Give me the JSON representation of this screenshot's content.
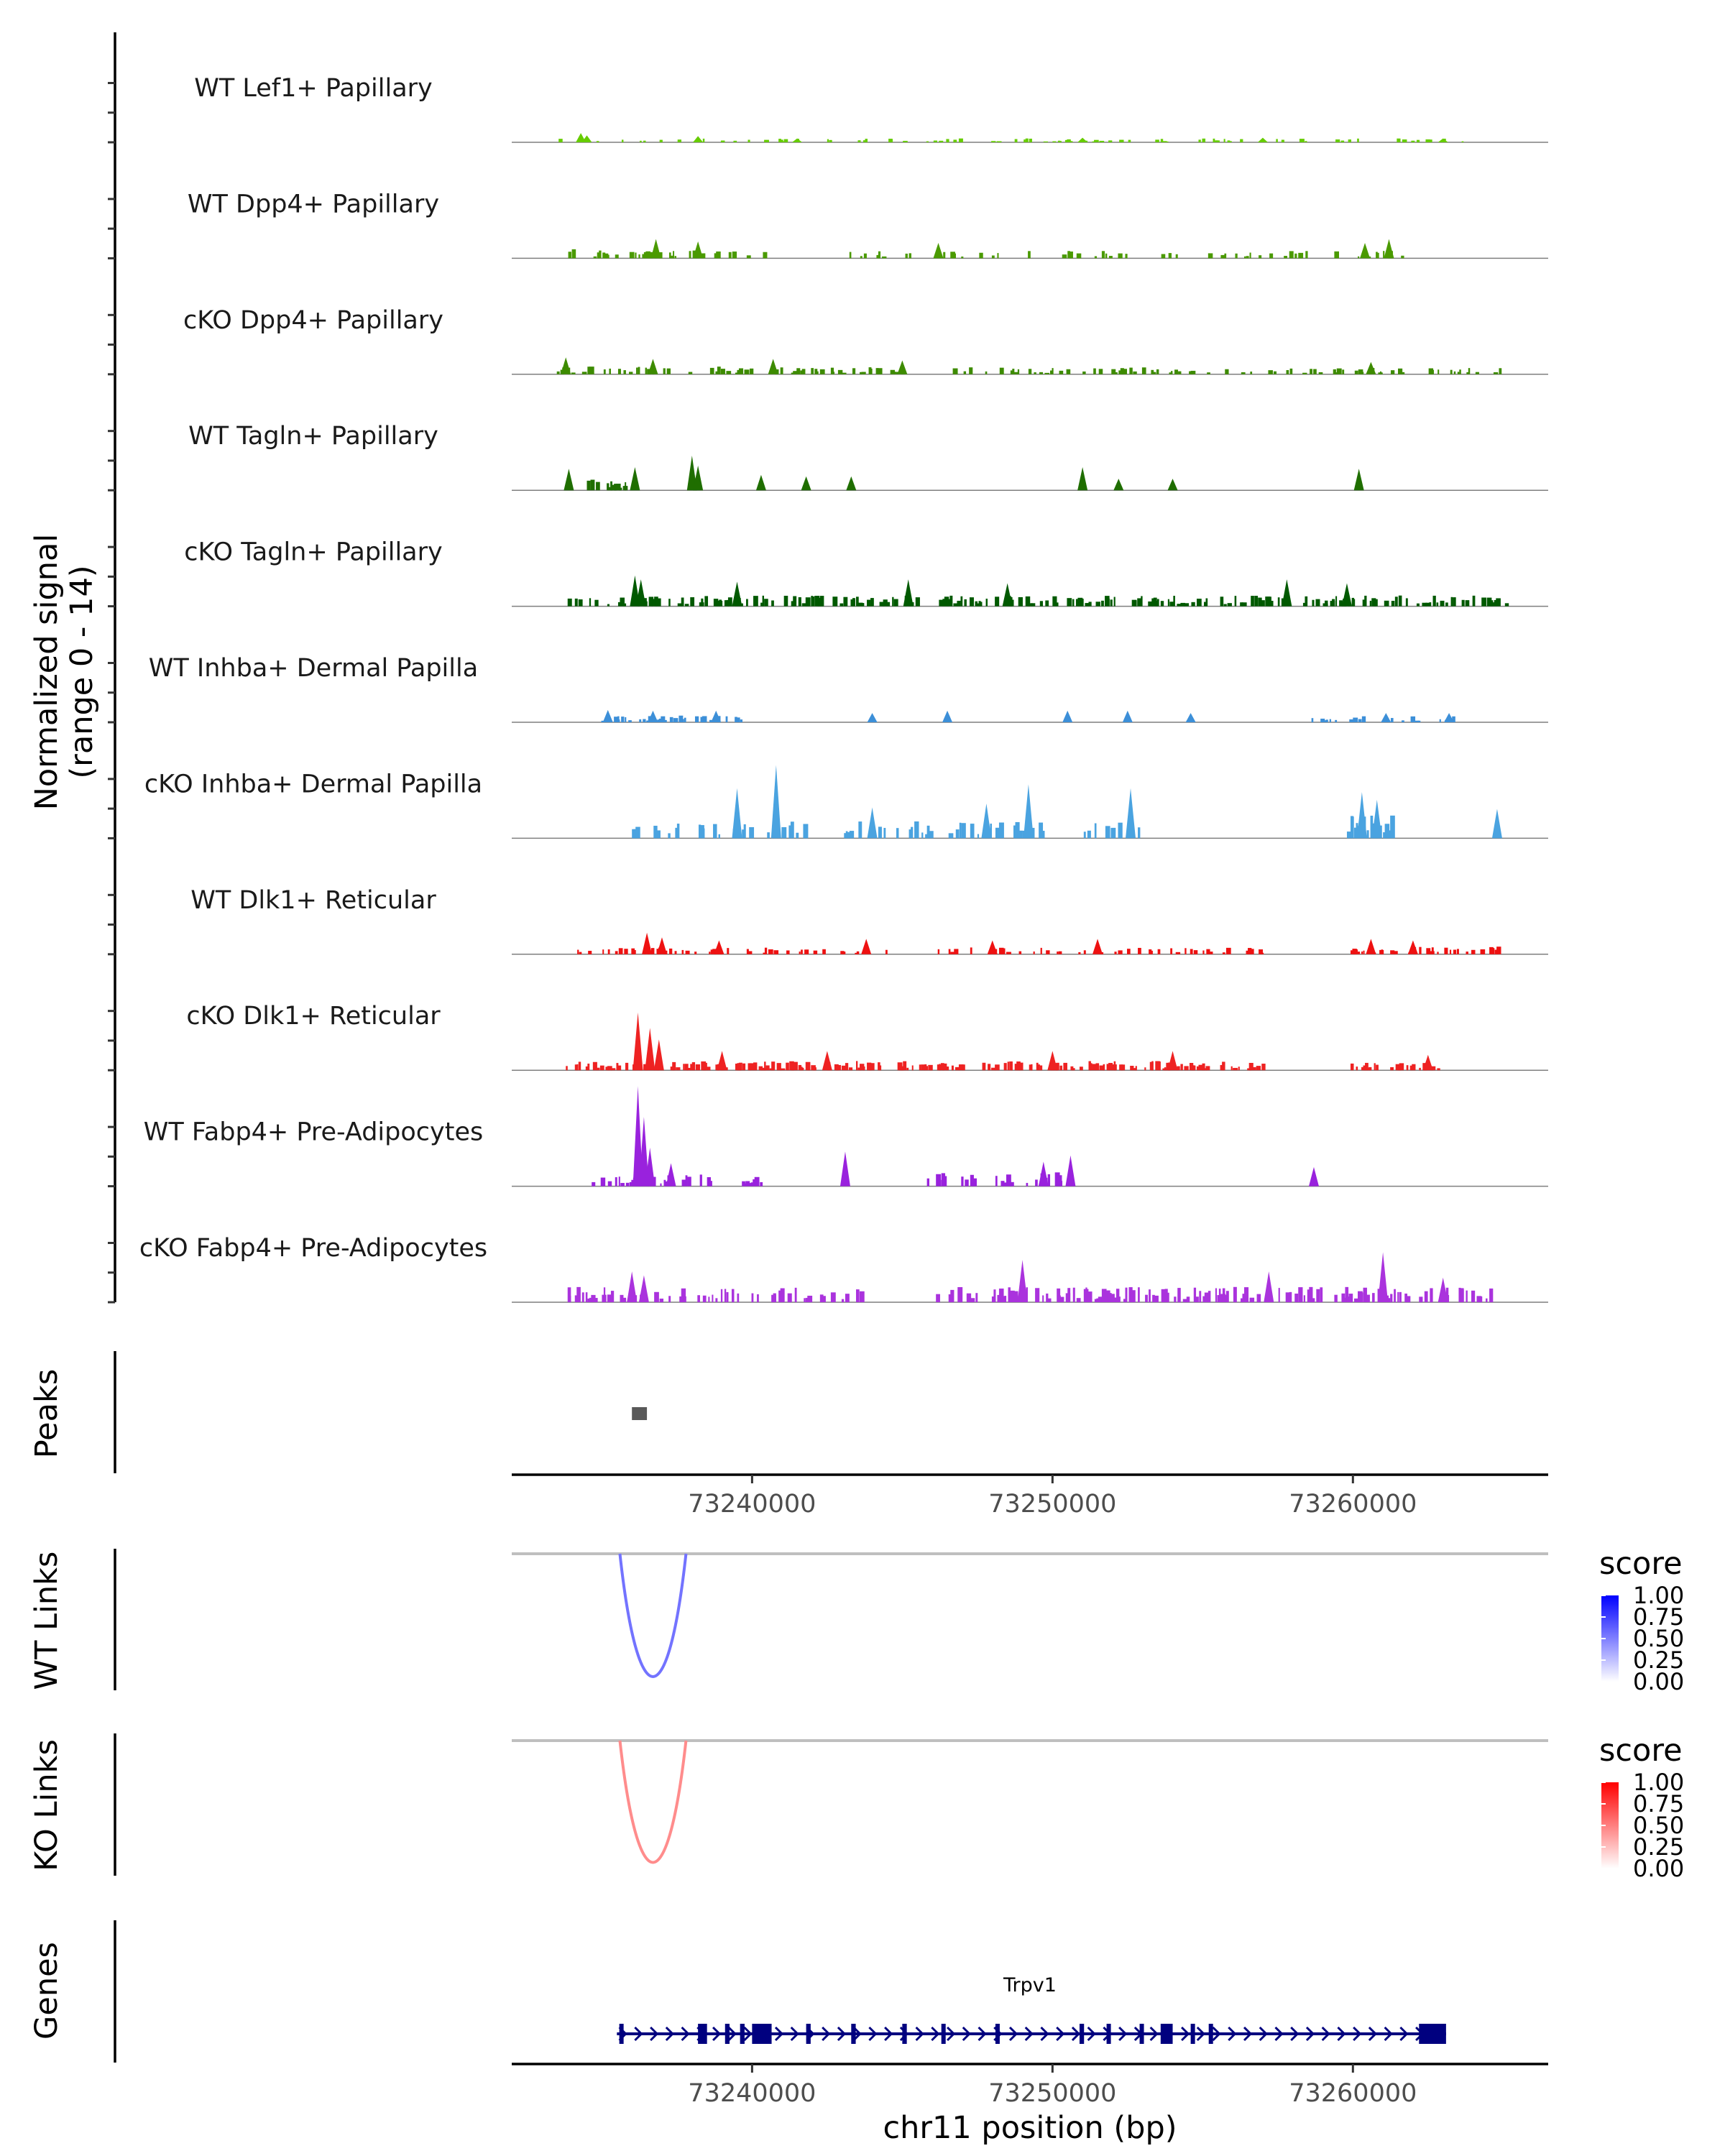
{
  "chart_data": {
    "type": "genome-track",
    "chromosome": "chr11",
    "x_range": [
      73232000,
      73266500
    ],
    "xlabel": "chr11 position (bp)",
    "x_ticks": [
      73240000,
      73250000,
      73260000
    ],
    "x_tick_labels": [
      "73240000",
      "73250000",
      "73260000"
    ],
    "signal_axis_title": [
      "Normalized signal",
      "(range 0 - 14)"
    ],
    "signal_range": [
      0,
      14
    ],
    "coverage_tracks": [
      {
        "name": "WT Lef1+ Papillary",
        "color": "#66cc00",
        "peaks": [
          [
            73234300,
            1.2
          ],
          [
            73234500,
            0.9
          ],
          [
            73238200,
            0.8
          ],
          [
            73241500,
            0.5
          ],
          [
            73251000,
            0.6
          ],
          [
            73257000,
            0.6
          ],
          [
            73263000,
            0.5
          ]
        ],
        "noise": [
          [
            73233200,
            73264000,
            0.5,
            0.18
          ]
        ]
      },
      {
        "name": "WT Dpp4+ Papillary",
        "color": "#4a9a00",
        "peaks": [
          [
            73236800,
            2.5
          ],
          [
            73238200,
            2.2
          ],
          [
            73246200,
            2.0
          ],
          [
            73260400,
            2.0
          ],
          [
            73261200,
            2.5
          ]
        ],
        "noise": [
          [
            73233700,
            73240500,
            1.2,
            0.22
          ],
          [
            73243000,
            73261700,
            1.0,
            0.14
          ]
        ]
      },
      {
        "name": "cKO Dpp4+ Papillary",
        "color": "#3d8b00",
        "peaks": [
          [
            73233800,
            2.2
          ],
          [
            73236700,
            2.0
          ],
          [
            73240700,
            2.0
          ],
          [
            73245000,
            1.8
          ],
          [
            73260600,
            1.6
          ]
        ],
        "noise": [
          [
            73233500,
            73245000,
            1.0,
            0.3
          ],
          [
            73246500,
            73265000,
            0.9,
            0.26
          ]
        ]
      },
      {
        "name": "WT Tagln+ Papillary",
        "color": "#1f6e00",
        "peaks": [
          [
            73233900,
            2.8
          ],
          [
            73236100,
            3.0
          ],
          [
            73238000,
            4.5
          ],
          [
            73238200,
            3.2
          ],
          [
            73240300,
            2.0
          ],
          [
            73241800,
            1.8
          ],
          [
            73243300,
            1.8
          ],
          [
            73251000,
            3.0
          ],
          [
            73252200,
            1.5
          ],
          [
            73254000,
            1.5
          ],
          [
            73260200,
            2.8
          ]
        ],
        "noise": [
          [
            73234500,
            73235800,
            1.4,
            0.5
          ]
        ]
      },
      {
        "name": "cKO Tagln+ Papillary",
        "color": "#005900",
        "peaks": [
          [
            73236100,
            4.0
          ],
          [
            73236300,
            3.5
          ],
          [
            73239500,
            3.2
          ],
          [
            73245200,
            3.5
          ],
          [
            73248500,
            3.0
          ],
          [
            73257800,
            3.5
          ],
          [
            73259800,
            3.0
          ]
        ],
        "noise": [
          [
            73233800,
            73245500,
            1.4,
            0.42
          ],
          [
            73245800,
            73265200,
            1.4,
            0.42
          ]
        ]
      },
      {
        "name": "WT Inhba+ Dermal Papilla",
        "color": "#3c8fd8",
        "peaks": [
          [
            73235200,
            1.6
          ],
          [
            73236700,
            1.5
          ],
          [
            73238800,
            1.5
          ],
          [
            73244000,
            1.2
          ],
          [
            73246500,
            1.5
          ],
          [
            73250500,
            1.5
          ],
          [
            73252500,
            1.5
          ],
          [
            73254600,
            1.2
          ],
          [
            73261100,
            1.2
          ],
          [
            73263200,
            1.2
          ]
        ],
        "noise": [
          [
            73234800,
            73239800,
            0.9,
            0.28
          ],
          [
            73258500,
            73263500,
            0.8,
            0.22
          ]
        ]
      },
      {
        "name": "cKO Inhba+ Dermal Papilla",
        "color": "#4aa3e0",
        "peaks": [
          [
            73240800,
            9.5
          ],
          [
            73239500,
            6.5
          ],
          [
            73244000,
            4.0
          ],
          [
            73247800,
            4.5
          ],
          [
            73249200,
            7.0
          ],
          [
            73252600,
            6.5
          ],
          [
            73260300,
            6.0
          ],
          [
            73260800,
            5.0
          ],
          [
            73264800,
            3.8
          ]
        ],
        "noise": [
          [
            73236000,
            73242000,
            2.2,
            0.22
          ],
          [
            73243000,
            73253000,
            2.2,
            0.26
          ],
          [
            73259800,
            73261300,
            3.0,
            0.7
          ]
        ]
      },
      {
        "name": "WT Dlk1+ Reticular",
        "color": "#ee1111",
        "peaks": [
          [
            73236500,
            2.8
          ],
          [
            73237000,
            2.2
          ],
          [
            73238900,
            1.8
          ],
          [
            73243800,
            2.0
          ],
          [
            73248000,
            1.8
          ],
          [
            73251500,
            2.0
          ],
          [
            73260600,
            2.0
          ],
          [
            73262000,
            1.8
          ]
        ],
        "noise": [
          [
            73234000,
            73244500,
            0.9,
            0.28
          ],
          [
            73246000,
            73257500,
            0.9,
            0.18
          ],
          [
            73259800,
            73264800,
            1.0,
            0.32
          ]
        ]
      },
      {
        "name": "cKO Dlk1+ Reticular",
        "color": "#ee2222",
        "peaks": [
          [
            73236200,
            7.5
          ],
          [
            73236600,
            5.5
          ],
          [
            73236900,
            4.0
          ],
          [
            73239000,
            2.5
          ],
          [
            73242500,
            2.5
          ],
          [
            73250000,
            2.5
          ],
          [
            73254000,
            2.5
          ],
          [
            73262500,
            2.0
          ]
        ],
        "noise": [
          [
            73233800,
            73257000,
            1.2,
            0.42
          ],
          [
            73259800,
            73263000,
            1.0,
            0.35
          ]
        ]
      },
      {
        "name": "WT Fabp4+ Pre-Adipocytes",
        "color": "#9922dd",
        "peaks": [
          [
            73236200,
            13.0
          ],
          [
            73236400,
            9.0
          ],
          [
            73236600,
            5.0
          ],
          [
            73237300,
            3.0
          ],
          [
            73243100,
            4.5
          ],
          [
            73249700,
            3.2
          ],
          [
            73250600,
            4.0
          ],
          [
            73258700,
            2.5
          ]
        ],
        "noise": [
          [
            73234000,
            73238600,
            1.6,
            0.32
          ],
          [
            73245700,
            73250500,
            1.8,
            0.28
          ],
          [
            73239600,
            73240300,
            1.5,
            0.5
          ]
        ]
      },
      {
        "name": "cKO Fabp4+ Pre-Adipocytes",
        "color": "#aa33dd",
        "peaks": [
          [
            73236000,
            4.0
          ],
          [
            73236400,
            3.5
          ],
          [
            73249000,
            5.5
          ],
          [
            73257200,
            4.0
          ],
          [
            73261000,
            6.5
          ],
          [
            73263000,
            3.2
          ]
        ],
        "noise": [
          [
            73233800,
            73244000,
            2.0,
            0.36
          ],
          [
            73246000,
            73265000,
            2.0,
            0.36
          ]
        ]
      }
    ],
    "peaks_track": {
      "label": "Peaks",
      "regions": [
        [
          73236000,
          73236500
        ]
      ]
    },
    "link_tracks": [
      {
        "label": "WT Links",
        "arc_start": 73235600,
        "arc_end": 73237800,
        "score": 0.55,
        "colors": [
          "#ffffff",
          "#0000ff"
        ],
        "legend_title": "score",
        "legend_ticks": [
          "1.00",
          "0.75",
          "0.50",
          "0.25",
          "0.00"
        ]
      },
      {
        "label": "KO Links",
        "arc_start": 73235600,
        "arc_end": 73237800,
        "score": 0.45,
        "colors": [
          "#ffffff",
          "#ff0000"
        ],
        "legend_title": "score",
        "legend_ticks": [
          "1.00",
          "0.75",
          "0.50",
          "0.25",
          "0.00"
        ]
      }
    ],
    "gene_track": {
      "label": "Genes",
      "gene": "Trpv1",
      "color": "#00007f",
      "start": 73235500,
      "end": 73263100,
      "exons": [
        [
          73235580,
          73235640
        ],
        [
          73238200,
          73238500
        ],
        [
          73239100,
          73239250
        ],
        [
          73239600,
          73239750
        ],
        [
          73240000,
          73240650
        ],
        [
          73241800,
          73241950
        ],
        [
          73243300,
          73243450
        ],
        [
          73245000,
          73245150
        ],
        [
          73246300,
          73246380
        ],
        [
          73248100,
          73248200
        ],
        [
          73250900,
          73251050
        ],
        [
          73251800,
          73251900
        ],
        [
          73252900,
          73253000
        ],
        [
          73253600,
          73254000
        ],
        [
          73254600,
          73254700
        ],
        [
          73255200,
          73255300
        ],
        [
          73262200,
          73263100
        ]
      ]
    }
  }
}
